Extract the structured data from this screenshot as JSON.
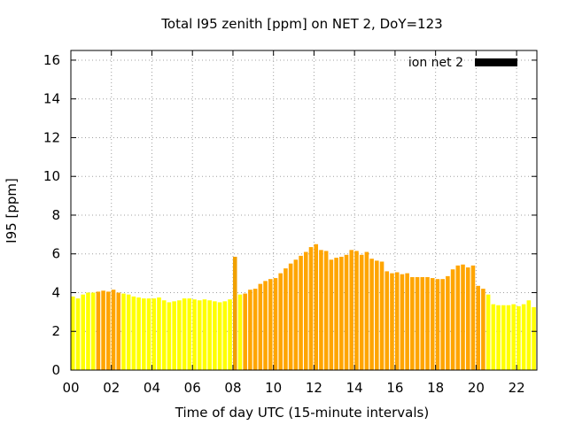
{
  "chart_data": {
    "type": "bar",
    "title": "Total I95 zenith [ppm] on NET 2, DoY=123",
    "xlabel": "Time of day UTC (15-minute intervals)",
    "ylabel": "I95 [ppm]",
    "xlim": [
      0,
      23
    ],
    "ylim": [
      0,
      16.5
    ],
    "xticks": [
      "00",
      "02",
      "04",
      "06",
      "08",
      "10",
      "12",
      "14",
      "16",
      "18",
      "20",
      "22"
    ],
    "yticks": [
      "0",
      "2",
      "4",
      "6",
      "8",
      "10",
      "12",
      "14",
      "16"
    ],
    "grid": true,
    "legend": {
      "label": "ion net 2",
      "position": "top-right",
      "color": "#000000"
    },
    "bar_width_hours": 0.2,
    "colors": {
      "yellow": "#ffff00",
      "orange": "#ffa500",
      "dark_orange": "#f0a000"
    },
    "series": [
      {
        "x": [
          0.0,
          0.25,
          0.5,
          0.75,
          1.0,
          1.25,
          1.5,
          1.75,
          2.0,
          2.25,
          2.5,
          2.75,
          3.0,
          3.25,
          3.5,
          3.75,
          4.0,
          4.25,
          4.5,
          4.75,
          5.0,
          5.25,
          5.5,
          5.75,
          6.0,
          6.25,
          6.5,
          6.75,
          7.0,
          7.25,
          7.5,
          7.75,
          8.0,
          8.25,
          8.5,
          8.75,
          9.0,
          9.25,
          9.5,
          9.75,
          10.0,
          10.25,
          10.5,
          10.75,
          11.0,
          11.25,
          11.5,
          11.75,
          12.0,
          12.25,
          12.5,
          12.75,
          13.0,
          13.25,
          13.5,
          13.75,
          14.0,
          14.25,
          14.5,
          14.75,
          15.0,
          15.25,
          15.5,
          15.75,
          16.0,
          16.25,
          16.5,
          16.75,
          17.0,
          17.25,
          17.5,
          17.75,
          18.0,
          18.25,
          18.5,
          18.75,
          19.0,
          19.25,
          19.5,
          19.75,
          20.0,
          20.25,
          20.5,
          20.75,
          21.0,
          21.25,
          21.5,
          21.75,
          22.0,
          22.25,
          22.5,
          22.75
        ],
        "values": [
          3.8,
          3.7,
          3.9,
          4.0,
          4.0,
          4.05,
          4.1,
          4.05,
          4.15,
          4.0,
          3.95,
          3.9,
          3.8,
          3.75,
          3.7,
          3.7,
          3.7,
          3.75,
          3.6,
          3.5,
          3.55,
          3.6,
          3.7,
          3.7,
          3.65,
          3.6,
          3.65,
          3.6,
          3.55,
          3.5,
          3.55,
          3.65,
          5.85,
          3.9,
          3.95,
          4.15,
          4.2,
          4.45,
          4.6,
          4.7,
          4.75,
          5.0,
          5.25,
          5.5,
          5.7,
          5.9,
          6.1,
          6.35,
          6.5,
          6.2,
          6.15,
          5.7,
          5.8,
          5.85,
          5.95,
          6.2,
          6.15,
          5.95,
          6.1,
          5.75,
          5.65,
          5.6,
          5.1,
          5.0,
          5.05,
          4.95,
          5.0,
          4.8,
          4.8,
          4.8,
          4.8,
          4.75,
          4.7,
          4.7,
          4.85,
          5.2,
          5.4,
          5.45,
          5.3,
          5.4,
          4.35,
          4.2,
          3.9,
          3.4,
          3.35,
          3.35,
          3.35,
          3.4,
          3.3,
          3.4,
          3.6,
          3.25
        ],
        "color_keys": [
          "yellow",
          "yellow",
          "yellow",
          "yellow",
          "yellow",
          "orange",
          "orange",
          "orange",
          "orange",
          "orange",
          "yellow",
          "yellow",
          "yellow",
          "yellow",
          "yellow",
          "yellow",
          "yellow",
          "yellow",
          "yellow",
          "yellow",
          "yellow",
          "yellow",
          "yellow",
          "yellow",
          "yellow",
          "yellow",
          "yellow",
          "yellow",
          "yellow",
          "yellow",
          "yellow",
          "yellow",
          "dark_orange",
          "yellow",
          "orange",
          "orange",
          "orange",
          "orange",
          "orange",
          "orange",
          "orange",
          "orange",
          "orange",
          "orange",
          "orange",
          "orange",
          "orange",
          "orange",
          "orange",
          "orange",
          "orange",
          "orange",
          "orange",
          "orange",
          "orange",
          "orange",
          "orange",
          "orange",
          "orange",
          "orange",
          "orange",
          "orange",
          "orange",
          "orange",
          "orange",
          "orange",
          "orange",
          "orange",
          "orange",
          "orange",
          "orange",
          "orange",
          "orange",
          "orange",
          "orange",
          "orange",
          "orange",
          "orange",
          "orange",
          "orange",
          "orange",
          "orange",
          "yellow",
          "yellow",
          "yellow",
          "yellow",
          "yellow",
          "yellow",
          "yellow",
          "yellow",
          "yellow",
          "yellow"
        ]
      }
    ]
  }
}
